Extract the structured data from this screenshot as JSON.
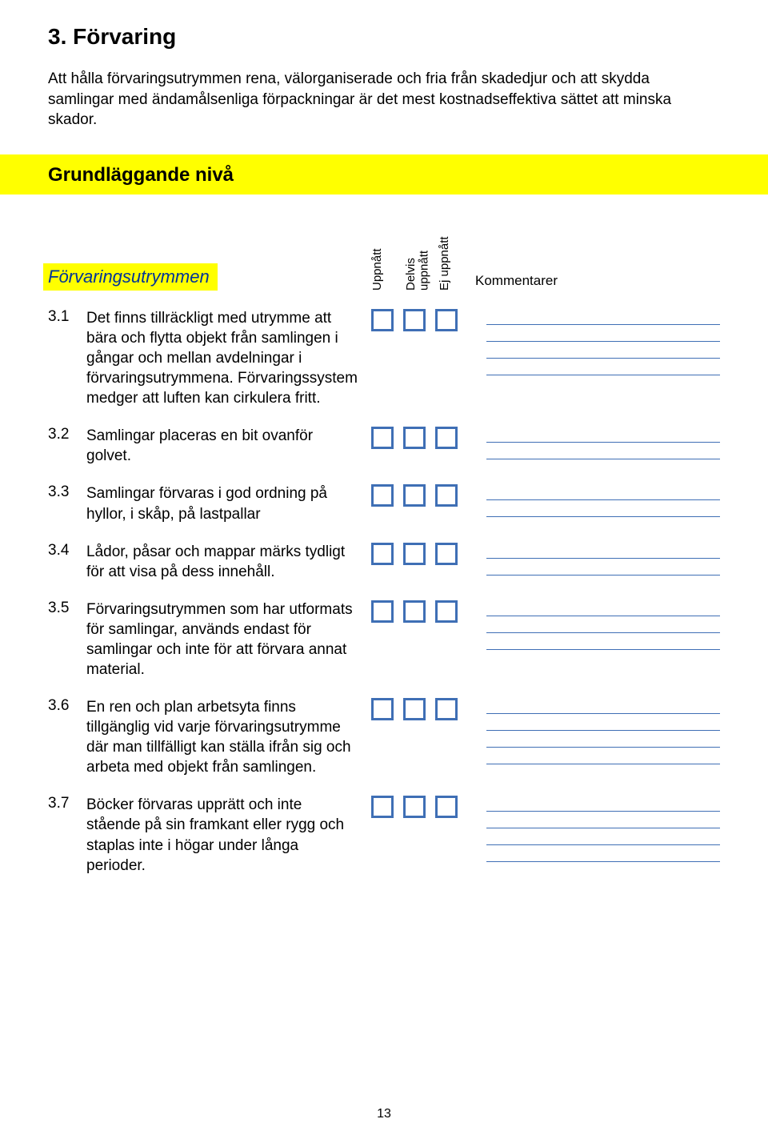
{
  "colors": {
    "highlight": "#ffff00",
    "checkbox_border": "#3f6fb5",
    "line_border": "#3f6fb5",
    "heading_blue": "#003399"
  },
  "title": "3. Förvaring",
  "intro": "Att hålla förvaringsutrymmen rena, välorganiserade och fria från skadedjur och att skydda samlingar med ändamålsenliga förpackningar är det mest kostnadseffektiva sättet att minska skador.",
  "level_label": "Grundläggande nivå",
  "section_label": "Förvaringsutrymmen",
  "col1": "Uppnått",
  "col2": "Delvis uppnått",
  "col3": "Ej uppnått",
  "comments_label": "Kommentarer",
  "items": {
    "i1": {
      "num": "3.1",
      "text": "Det finns tillräckligt med utrymme att bära och flytta objekt från samlingen i gångar och mellan avdelningar i förvaringsutrymmena. Förvaringssystem medger att luften kan cirkulera fritt.",
      "lines": 4
    },
    "i2": {
      "num": "3.2",
      "text": "Samlingar placeras en bit ovanför golvet.",
      "lines": 2
    },
    "i3": {
      "num": "3.3",
      "text": "Samlingar förvaras i god ordning på hyllor, i skåp, på lastpallar",
      "lines": 2
    },
    "i4": {
      "num": "3.4",
      "text": "Lådor, påsar och mappar märks tydligt för att visa på dess innehåll.",
      "lines": 2
    },
    "i5": {
      "num": "3.5",
      "text": "Förvaringsutrymmen som har utformats för samlingar, används endast för samlingar och inte för att förvara annat material.",
      "lines": 3
    },
    "i6": {
      "num": "3.6",
      "text": "En ren och plan arbetsyta finns tillgänglig vid varje förvaringsutrymme där man tillfälligt kan ställa ifrån sig och arbeta med objekt från samlingen.",
      "lines": 4
    },
    "i7": {
      "num": "3.7",
      "text": "Böcker förvaras upprätt och inte stående på sin framkant eller rygg och staplas inte i högar under långa perioder.",
      "lines": 4
    }
  },
  "page_number": "13"
}
